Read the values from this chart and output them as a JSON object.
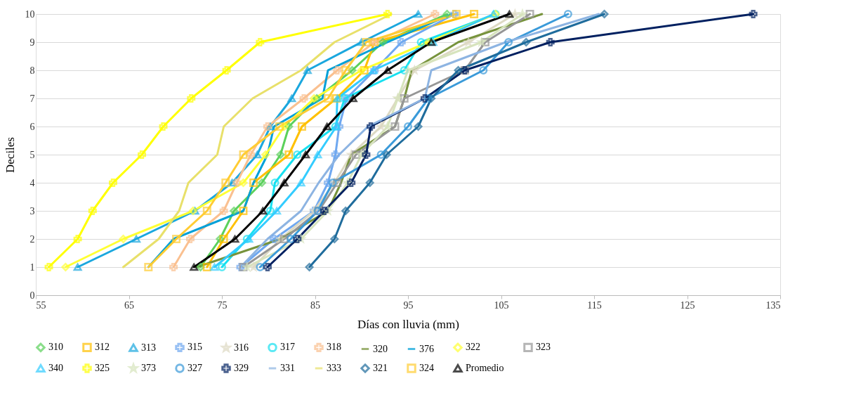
{
  "chart_data": {
    "type": "line",
    "xlabel": "Días con lluvia (mm)",
    "ylabel": "Deciles",
    "xlim": [
      55,
      135
    ],
    "xticks": [
      55,
      65,
      75,
      85,
      95,
      105,
      115,
      125,
      135
    ],
    "ylim": [
      0,
      10
    ],
    "yticks": [
      0,
      1,
      2,
      3,
      4,
      5,
      6,
      7,
      8,
      9,
      10
    ],
    "grid": "y",
    "legend": "bottom",
    "series": [
      {
        "name": "310",
        "color": "#5bd15b",
        "marker": "diamond",
        "x": [
          72.7,
          74.8,
          76.3,
          79.3,
          81.3,
          82.2,
          85.2,
          89.0,
          92.3,
          99.2
        ],
        "values": [
          1,
          2,
          3,
          4,
          5,
          6,
          7,
          8,
          9,
          10
        ]
      },
      {
        "name": "312",
        "color": "#ffc000",
        "marker": "square",
        "x": [
          73.4,
          75.2,
          77.3,
          78.4,
          82.2,
          83.6,
          87.3,
          90.3,
          91.4,
          102.1
        ],
        "values": [
          1,
          2,
          3,
          4,
          5,
          6,
          7,
          8,
          9,
          10
        ]
      },
      {
        "name": "313",
        "color": "#1aa7de",
        "marker": "triangle",
        "x": [
          59.5,
          65.8,
          72.1,
          76.1,
          78.8,
          80.2,
          82.5,
          84.2,
          90.0,
          96.1
        ],
        "values": [
          1,
          2,
          3,
          4,
          5,
          6,
          7,
          8,
          9,
          10
        ]
      },
      {
        "name": "315",
        "color": "#6fa8f0",
        "marker": "cross",
        "x": [
          77.0,
          80.6,
          84.9,
          86.4,
          87.2,
          87.6,
          88.4,
          91.4,
          94.3,
          100.0
        ],
        "values": [
          1,
          2,
          3,
          4,
          5,
          6,
          7,
          8,
          9,
          10
        ]
      },
      {
        "name": "316",
        "color": "#ddd9c3",
        "marker": "star",
        "x": [
          78.4,
          81.3,
          84.9,
          87.1,
          88.9,
          92.1,
          93.9,
          95.7,
          101.5,
          106.5
        ],
        "values": [
          1,
          2,
          3,
          4,
          5,
          6,
          7,
          8,
          9,
          10
        ]
      },
      {
        "name": "317",
        "color": "#17e0f0",
        "marker": "circle",
        "x": [
          75.0,
          77.7,
          80.2,
          80.7,
          83.1,
          87.2,
          88.2,
          94.6,
          96.4,
          104.4
        ],
        "values": [
          1,
          2,
          3,
          4,
          5,
          6,
          7,
          8,
          9,
          10
        ]
      },
      {
        "name": "318",
        "color": "#fac090",
        "marker": "cross",
        "x": [
          69.8,
          71.6,
          75.2,
          76.6,
          78.1,
          79.9,
          83.8,
          87.4,
          91.4,
          97.9
        ],
        "values": [
          1,
          2,
          3,
          4,
          5,
          6,
          7,
          8,
          9,
          10
        ]
      },
      {
        "name": "320",
        "color": "#77933c",
        "marker": "none",
        "x": [
          72.3,
          81.3,
          86.4,
          87.8,
          88.9,
          93.6,
          94.6,
          95.4,
          100.4,
          109.4
        ],
        "values": [
          1,
          2,
          3,
          4,
          5,
          6,
          7,
          8,
          9,
          10
        ]
      },
      {
        "name": "376",
        "color": "#00a0d8",
        "marker": "none",
        "x": [
          67.1,
          69.8,
          77.3,
          78.4,
          79.9,
          80.6,
          85.8,
          86.4,
          92.8,
          99.7
        ],
        "values": [
          1,
          2,
          3,
          4,
          5,
          6,
          7,
          8,
          9,
          10
        ]
      },
      {
        "name": "322",
        "color": "#ffff33",
        "marker": "diamond",
        "x": [
          58.2,
          64.4,
          71.9,
          77.3,
          79.7,
          81.7,
          84.9,
          90.0,
          97.2,
          104.4
        ],
        "values": [
          1,
          2,
          3,
          4,
          5,
          6,
          7,
          8,
          9,
          10
        ]
      },
      {
        "name": "323",
        "color": "#969696",
        "marker": "square",
        "x": [
          77.3,
          81.7,
          85.4,
          87.4,
          89.4,
          93.6,
          94.6,
          101.1,
          103.3,
          108.1
        ],
        "values": [
          1,
          2,
          3,
          4,
          5,
          6,
          7,
          8,
          9,
          10
        ]
      },
      {
        "name": "340",
        "color": "#33ccff",
        "marker": "triangle",
        "x": [
          74.2,
          77.9,
          80.9,
          83.5,
          85.3,
          87.3,
          87.4,
          91.3,
          97.7,
          104.2
        ],
        "values": [
          1,
          2,
          3,
          4,
          5,
          6,
          7,
          8,
          9,
          10
        ]
      },
      {
        "name": "325",
        "color": "#ffff00",
        "marker": "cross",
        "x": [
          56.4,
          59.5,
          61.1,
          63.3,
          66.4,
          68.7,
          71.7,
          75.5,
          79.1,
          92.8
        ],
        "values": [
          1,
          2,
          3,
          4,
          5,
          6,
          7,
          8,
          9,
          10
        ]
      },
      {
        "name": "373",
        "color": "#d7e4bd",
        "marker": "star",
        "x": [
          77.7,
          83.5,
          86.4,
          88.5,
          90.0,
          92.8,
          93.9,
          95.0,
          102.9,
          107.3
        ],
        "values": [
          1,
          2,
          3,
          4,
          5,
          6,
          7,
          8,
          9,
          10
        ]
      },
      {
        "name": "327",
        "color": "#3a9ad9",
        "marker": "circle",
        "x": [
          79.1,
          82.4,
          85.3,
          86.9,
          92.1,
          95.0,
          97.2,
          103.1,
          105.8,
          112.2
        ],
        "values": [
          1,
          2,
          3,
          4,
          5,
          6,
          7,
          8,
          9,
          10
        ]
      },
      {
        "name": "329",
        "color": "#002060",
        "marker": "cross",
        "x": [
          79.9,
          83.1,
          86.0,
          88.9,
          90.5,
          91.0,
          96.8,
          101.1,
          110.3,
          132.1
        ],
        "values": [
          1,
          2,
          3,
          4,
          5,
          6,
          7,
          8,
          9,
          10
        ]
      },
      {
        "name": "331",
        "color": "#8db4e2",
        "marker": "none",
        "x": [
          77.0,
          79.9,
          83.5,
          85.4,
          87.6,
          90.7,
          96.8,
          97.5,
          105.5,
          115.5
        ],
        "values": [
          1,
          2,
          3,
          4,
          5,
          6,
          7,
          8,
          9,
          10
        ]
      },
      {
        "name": "333",
        "color": "#e8e06a",
        "marker": "none",
        "x": [
          64.4,
          68.2,
          70.4,
          71.4,
          74.5,
          75.2,
          78.3,
          83.5,
          87.1,
          93.2
        ],
        "values": [
          1,
          2,
          3,
          4,
          5,
          6,
          7,
          8,
          9,
          10
        ]
      },
      {
        "name": "321",
        "color": "#1f6c9c",
        "marker": "diamond",
        "x": [
          84.4,
          87.1,
          88.3,
          90.9,
          92.7,
          96.1,
          97.5,
          100.4,
          107.7,
          116.1
        ],
        "values": [
          1,
          2,
          3,
          4,
          5,
          6,
          7,
          8,
          9,
          10
        ]
      },
      {
        "name": "324",
        "color": "#ffcc33",
        "marker": "square",
        "x": [
          67.1,
          70.1,
          73.4,
          75.4,
          77.3,
          81.2,
          86.4,
          88.3,
          90.5,
          100.2
        ],
        "values": [
          1,
          2,
          3,
          4,
          5,
          6,
          7,
          8,
          9,
          10
        ]
      },
      {
        "name": "Promedio",
        "color": "#000000",
        "marker": "triangle",
        "x": [
          72.0,
          76.4,
          79.4,
          81.7,
          84.0,
          86.3,
          89.1,
          92.8,
          97.5,
          105.9
        ],
        "values": [
          1,
          2,
          3,
          4,
          5,
          6,
          7,
          8,
          9,
          10
        ]
      }
    ]
  }
}
